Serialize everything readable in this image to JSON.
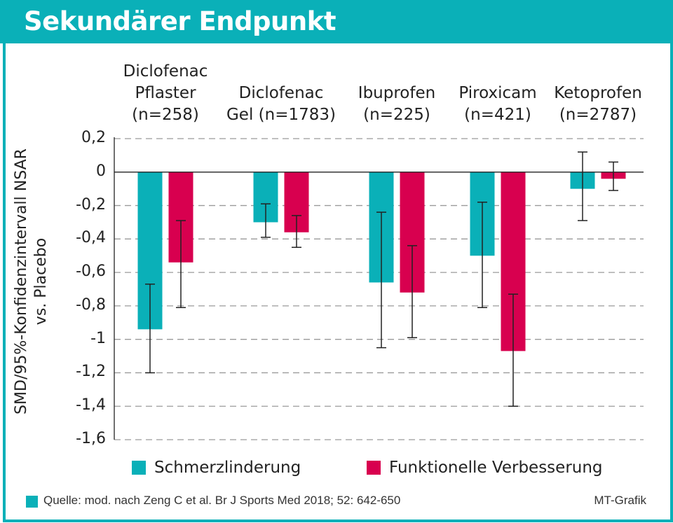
{
  "header": {
    "title": "Sekundärer Endpunkt"
  },
  "chart_data": {
    "type": "bar",
    "title": "",
    "xlabel": "",
    "ylabel": "SMD/95%-Konfidenzintervall\nNSAR vs. Placebo",
    "categories": [
      "Diclofenac\nPflaster\n(n=258)",
      "Diclofenac\nGel (n=1783)",
      "Ibuprofen\n(n=225)",
      "Piroxicam\n(n=421)",
      "Ketoprofen\n(n=2787)"
    ],
    "ylim": [
      -1.6,
      0.2
    ],
    "yticks": [
      0.2,
      0,
      -0.2,
      -0.4,
      -0.6,
      -0.8,
      -1,
      -1.2,
      -1.4,
      -1.6
    ],
    "ytick_labels": [
      "0,2",
      "0",
      "-0,2",
      "-0,4",
      "-0,6",
      "-0,8",
      "-1",
      "-1,2",
      "-1,4",
      "-1,6"
    ],
    "grid": true,
    "legend_position": "bottom",
    "series": [
      {
        "name": "Schmerzlinderung",
        "color": "#0ab0b8",
        "values": [
          -0.94,
          -0.3,
          -0.66,
          -0.5,
          -0.1
        ],
        "ci_low": [
          -1.2,
          -0.39,
          -1.05,
          -0.81,
          -0.29
        ],
        "ci_high": [
          -0.67,
          -0.19,
          -0.24,
          -0.18,
          0.12
        ]
      },
      {
        "name": "Funktionelle Verbesserung",
        "color": "#d8004f",
        "values": [
          -0.54,
          -0.36,
          -0.72,
          -1.07,
          -0.04
        ],
        "ci_low": [
          -0.81,
          -0.45,
          -0.99,
          -1.4,
          -0.11
        ],
        "ci_high": [
          -0.29,
          -0.26,
          -0.44,
          -0.73,
          0.06
        ]
      }
    ]
  },
  "footer": {
    "source": "Quelle: mod. nach Zeng C et al. Br J Sports Med 2018; 52: 642-650",
    "credit": "MT-Grafik"
  }
}
